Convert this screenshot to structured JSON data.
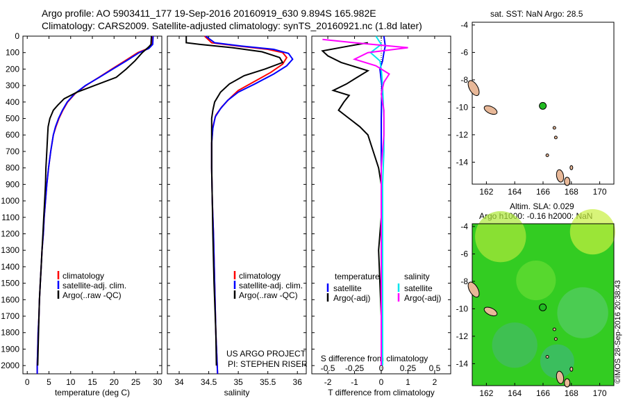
{
  "header": {
    "line1": "Argo profile: AO 5903411_177 19-Sep-2016 20160919_630 9.894S 165.982E",
    "line2": "Climatology: CARS2009. Satellite-adjusted climatology: synTS_20160921.nc (1.8d later)"
  },
  "side_text": "©IMOS 28-Sep-2016 20:38:43",
  "project_text": [
    "US ARGO PROJECT",
    "PI: STEPHEN RISER"
  ],
  "colors": {
    "climatology": "#ff0000",
    "satellite": "#0000ff",
    "argo": "#000000",
    "salinity_satellite": "#00e5ee",
    "salinity_argo": "#ff00ff",
    "land": "#e8b898",
    "float_marker": "#22bb22",
    "sla_field": "#33cc22"
  },
  "chart_data": [
    {
      "type": "line",
      "panel": "temperature",
      "xlabel": "temperature (deg C)",
      "ylabel": "",
      "xlim": [
        -1,
        31
      ],
      "ylim": [
        2050,
        0
      ],
      "x_ticks": [
        0,
        5,
        10,
        15,
        20,
        25,
        30
      ],
      "y_ticks": [
        0,
        100,
        200,
        300,
        400,
        500,
        600,
        700,
        800,
        900,
        1000,
        1100,
        1200,
        1300,
        1400,
        1500,
        1600,
        1700,
        1800,
        1900,
        2000
      ],
      "legend": [
        "climatology",
        "satellite-adj. clim.",
        "Argo(..raw -QC)"
      ],
      "series": [
        {
          "name": "climatology",
          "color": "#ff0000",
          "points": [
            [
              28.9,
              0
            ],
            [
              28.8,
              50
            ],
            [
              27.8,
              75
            ],
            [
              25.5,
              100
            ],
            [
              22.5,
              150
            ],
            [
              19.5,
              200
            ],
            [
              16.5,
              250
            ],
            [
              13.5,
              300
            ],
            [
              11.0,
              350
            ],
            [
              9.3,
              400
            ],
            [
              8.2,
              450
            ],
            [
              7.3,
              500
            ],
            [
              6.6,
              550
            ],
            [
              6.0,
              600
            ],
            [
              5.4,
              700
            ],
            [
              4.9,
              800
            ],
            [
              4.5,
              900
            ],
            [
              4.2,
              1000
            ],
            [
              3.9,
              1100
            ],
            [
              3.7,
              1200
            ],
            [
              3.4,
              1300
            ],
            [
              3.2,
              1400
            ],
            [
              3.0,
              1500
            ],
            [
              2.8,
              1600
            ],
            [
              2.7,
              1700
            ],
            [
              2.5,
              1800
            ],
            [
              2.4,
              1900
            ],
            [
              2.3,
              2000
            ],
            [
              2.3,
              2050
            ]
          ]
        },
        {
          "name": "satellite-adj. clim.",
          "color": "#0000ff",
          "points": [
            [
              29.0,
              0
            ],
            [
              28.9,
              50
            ],
            [
              28.0,
              75
            ],
            [
              25.8,
              100
            ],
            [
              22.8,
              150
            ],
            [
              19.7,
              200
            ],
            [
              16.6,
              250
            ],
            [
              13.4,
              300
            ],
            [
              10.9,
              350
            ],
            [
              9.2,
              400
            ],
            [
              8.1,
              450
            ],
            [
              7.2,
              500
            ],
            [
              6.5,
              550
            ],
            [
              6.0,
              600
            ],
            [
              5.4,
              700
            ],
            [
              4.9,
              800
            ],
            [
              4.5,
              900
            ],
            [
              4.2,
              1000
            ],
            [
              3.9,
              1100
            ],
            [
              3.7,
              1200
            ],
            [
              3.4,
              1300
            ],
            [
              3.2,
              1400
            ],
            [
              3.0,
              1500
            ],
            [
              2.8,
              1600
            ],
            [
              2.7,
              1700
            ],
            [
              2.5,
              1800
            ],
            [
              2.4,
              1900
            ],
            [
              2.3,
              2000
            ],
            [
              2.3,
              2050
            ]
          ]
        },
        {
          "name": "Argo(..raw -QC)",
          "color": "#000000",
          "points": [
            [
              28.6,
              0
            ],
            [
              28.5,
              50
            ],
            [
              28.0,
              65
            ],
            [
              26.5,
              100
            ],
            [
              24.8,
              150
            ],
            [
              22.8,
              200
            ],
            [
              20.5,
              250
            ],
            [
              15.5,
              300
            ],
            [
              11.5,
              340
            ],
            [
              8.5,
              380
            ],
            [
              7.0,
              420
            ],
            [
              6.0,
              450
            ],
            [
              5.2,
              500
            ],
            [
              4.8,
              550
            ],
            [
              4.7,
              600
            ],
            [
              4.6,
              650
            ],
            [
              4.5,
              700
            ],
            [
              4.3,
              800
            ],
            [
              4.2,
              900
            ],
            [
              4.0,
              1000
            ],
            [
              3.8,
              1100
            ],
            [
              3.6,
              1200
            ],
            [
              3.4,
              1300
            ],
            [
              3.2,
              1400
            ],
            [
              3.0,
              1500
            ],
            [
              2.8,
              1600
            ],
            [
              2.7,
              1700
            ],
            [
              2.6,
              1800
            ],
            [
              2.5,
              1900
            ],
            [
              2.4,
              2000
            ]
          ]
        }
      ]
    },
    {
      "type": "line",
      "panel": "salinity",
      "xlabel": "salinity",
      "xlim": [
        33.8,
        36.15
      ],
      "ylim": [
        2050,
        0
      ],
      "x_ticks": [
        34,
        34.5,
        35,
        35.5,
        36
      ],
      "legend": [
        "climatology",
        "satellite-adj. clim.",
        "Argo(..raw -QC)"
      ],
      "series": [
        {
          "name": "climatology",
          "color": "#ff0000",
          "points": [
            [
              34.43,
              0
            ],
            [
              34.55,
              40
            ],
            [
              35.0,
              60
            ],
            [
              35.5,
              80
            ],
            [
              35.75,
              100
            ],
            [
              35.82,
              130
            ],
            [
              35.75,
              170
            ],
            [
              35.55,
              220
            ],
            [
              35.25,
              280
            ],
            [
              35.0,
              330
            ],
            [
              34.85,
              380
            ],
            [
              34.72,
              430
            ],
            [
              34.62,
              480
            ],
            [
              34.57,
              550
            ],
            [
              34.55,
              650
            ],
            [
              34.55,
              800
            ],
            [
              34.56,
              1000
            ],
            [
              34.58,
              1200
            ],
            [
              34.6,
              1500
            ],
            [
              34.62,
              1800
            ],
            [
              34.65,
              2050
            ]
          ]
        },
        {
          "name": "satellite-adj. clim.",
          "color": "#0000ff",
          "points": [
            [
              34.45,
              0
            ],
            [
              34.6,
              40
            ],
            [
              35.05,
              60
            ],
            [
              35.6,
              80
            ],
            [
              35.85,
              105
            ],
            [
              35.92,
              140
            ],
            [
              35.82,
              180
            ],
            [
              35.6,
              230
            ],
            [
              35.28,
              290
            ],
            [
              35.0,
              340
            ],
            [
              34.82,
              390
            ],
            [
              34.7,
              440
            ],
            [
              34.61,
              490
            ],
            [
              34.57,
              560
            ],
            [
              34.55,
              650
            ],
            [
              34.55,
              800
            ],
            [
              34.56,
              1000
            ],
            [
              34.58,
              1200
            ],
            [
              34.6,
              1500
            ],
            [
              34.62,
              1800
            ],
            [
              34.65,
              2050
            ]
          ]
        },
        {
          "name": "Argo(..raw -QC)",
          "color": "#000000",
          "points": [
            [
              34.12,
              0
            ],
            [
              34.12,
              40
            ],
            [
              34.35,
              50
            ],
            [
              34.9,
              70
            ],
            [
              35.4,
              95
            ],
            [
              35.7,
              130
            ],
            [
              35.75,
              160
            ],
            [
              35.45,
              200
            ],
            [
              35.1,
              240
            ],
            [
              34.85,
              290
            ],
            [
              34.7,
              340
            ],
            [
              34.6,
              400
            ],
            [
              34.57,
              450
            ],
            [
              34.55,
              500
            ],
            [
              34.55,
              600
            ],
            [
              34.55,
              800
            ],
            [
              34.56,
              1000
            ],
            [
              34.57,
              1200
            ],
            [
              34.59,
              1500
            ],
            [
              34.62,
              1800
            ],
            [
              34.63,
              2000
            ]
          ]
        }
      ]
    },
    {
      "type": "line",
      "panel": "difference",
      "xlabel": "T difference from climatology",
      "top_label": "S difference from climatology",
      "xlim": [
        -2.6,
        2.6
      ],
      "ylim": [
        2050,
        0
      ],
      "x_ticks": [
        -2,
        -1,
        0,
        1,
        2
      ],
      "s_ticks": [
        "-0.5",
        "-0.25",
        "0",
        "0.25",
        "0.5"
      ],
      "legend_titles": [
        "temperature",
        "salinity"
      ],
      "legend": [
        "satellite",
        "Argo(-adj)",
        "satellite",
        "Argo(-adj)"
      ],
      "series": [
        {
          "name": "satellite",
          "color": "#0000ff",
          "points": [
            [
              0.1,
              0
            ],
            [
              0.15,
              60
            ],
            [
              0.1,
              100
            ],
            [
              0.05,
              150
            ],
            [
              -0.05,
              200
            ],
            [
              0.02,
              300
            ],
            [
              0.0,
              500
            ],
            [
              0.0,
              800
            ],
            [
              0.0,
              1100
            ],
            [
              0.0,
              1500
            ],
            [
              0.0,
              2000
            ]
          ]
        },
        {
          "name": "Argo(-adj)",
          "color": "#000000",
          "points": [
            [
              -0.5,
              40
            ],
            [
              -1.2,
              60
            ],
            [
              -2.2,
              90
            ],
            [
              -2.0,
              120
            ],
            [
              -1.5,
              160
            ],
            [
              -0.5,
              210
            ],
            [
              -1.0,
              260
            ],
            [
              -1.3,
              290
            ],
            [
              -1.8,
              330
            ],
            [
              -1.2,
              360
            ],
            [
              -1.4,
              400
            ],
            [
              -1.6,
              450
            ],
            [
              -1.2,
              500
            ],
            [
              -0.8,
              550
            ],
            [
              -0.5,
              600
            ],
            [
              -0.3,
              700
            ],
            [
              -0.1,
              800
            ],
            [
              0.0,
              900
            ],
            [
              0.0,
              1100
            ],
            [
              -0.1,
              1300
            ],
            [
              -0.05,
              1500
            ],
            [
              0.0,
              1700
            ],
            [
              0.0,
              2000
            ]
          ]
        },
        {
          "name": "satellite",
          "color": "#00e5ee",
          "points": [
            [
              -0.2,
              0
            ],
            [
              0.0,
              50
            ],
            [
              -0.4,
              100
            ],
            [
              -0.05,
              150
            ],
            [
              0.0,
              200
            ],
            [
              0.05,
              300
            ],
            [
              0.1,
              500
            ],
            [
              0.1,
              700
            ],
            [
              0.05,
              900
            ],
            [
              0.05,
              1200
            ],
            [
              0.05,
              1500
            ],
            [
              0.05,
              2000
            ]
          ]
        },
        {
          "name": "Argo(-adj)",
          "color": "#ff00ff",
          "points": [
            [
              -2.2,
              20
            ],
            [
              -1.0,
              40
            ],
            [
              1.0,
              70
            ],
            [
              -0.5,
              100
            ],
            [
              -1.0,
              140
            ],
            [
              -0.2,
              180
            ],
            [
              0.3,
              230
            ],
            [
              0.1,
              280
            ],
            [
              0.0,
              350
            ],
            [
              0.1,
              450
            ],
            [
              0.1,
              600
            ],
            [
              0.0,
              800
            ],
            [
              0.0,
              1000
            ],
            [
              0.0,
              1300
            ],
            [
              0.0,
              1600
            ],
            [
              0.0,
              2000
            ]
          ]
        }
      ]
    }
  ],
  "map_top": {
    "title": "sat. SST: NaN Argo: 28.5",
    "xlim": [
      161,
      171
    ],
    "ylim": [
      -15.6,
      -3.8
    ],
    "x_ticks": [
      162,
      164,
      166,
      168,
      170
    ],
    "y_ticks": [
      -4,
      -6,
      -8,
      -10,
      -12,
      -14
    ],
    "float_position": [
      165.982,
      -9.894
    ]
  },
  "map_bottom": {
    "title_line1": "Altim. SLA: 0.029",
    "title_line2": "Argo h1000: -0.16 h2000: NaN",
    "xlim": [
      161,
      171
    ],
    "ylim": [
      -15.6,
      -3.8
    ],
    "x_ticks": [
      162,
      164,
      166,
      168,
      170
    ],
    "y_ticks": [
      -4,
      -6,
      -8,
      -10,
      -12,
      -14
    ],
    "float_position": [
      165.982,
      -9.894
    ]
  }
}
